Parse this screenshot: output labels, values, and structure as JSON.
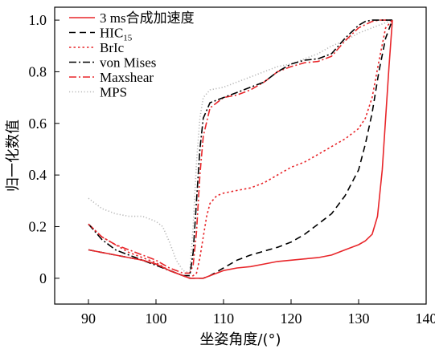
{
  "chart_data": {
    "type": "line",
    "xlabel": "坐姿角度/(°)",
    "ylabel": "归一化数值",
    "xlim": [
      85,
      140
    ],
    "ylim": [
      -0.1,
      1.05
    ],
    "xticks": [
      90,
      100,
      110,
      120,
      130,
      140
    ],
    "yticks": [
      0,
      0.2,
      0.4,
      0.6,
      0.8,
      1.0
    ],
    "xtick_labels": [
      "90",
      "100",
      "110",
      "120",
      "130",
      "140"
    ],
    "ytick_labels": [
      "0",
      "0.2",
      "0.4",
      "0.6",
      "0.8",
      "1.0"
    ],
    "grid": false,
    "legend_position": "top-left",
    "series": [
      {
        "name": "3 ms合成加速度",
        "legend_main": "3 ms合成加速度",
        "legend_sub": "",
        "color": "#e8262a",
        "dash": "solid",
        "x": [
          90,
          92,
          94,
          96,
          98,
          100,
          102,
          104,
          105,
          106,
          107,
          108,
          110,
          112,
          114,
          116,
          118,
          120,
          122,
          124,
          126,
          128,
          130,
          131,
          132,
          132.8,
          133.5,
          134,
          134.5,
          135
        ],
        "y": [
          0.11,
          0.1,
          0.09,
          0.08,
          0.07,
          0.055,
          0.03,
          0.01,
          0.0,
          0.0,
          0.0,
          0.01,
          0.03,
          0.04,
          0.045,
          0.055,
          0.065,
          0.07,
          0.075,
          0.08,
          0.09,
          0.11,
          0.13,
          0.145,
          0.17,
          0.24,
          0.42,
          0.62,
          0.82,
          1.0
        ]
      },
      {
        "name": "HIC15",
        "legend_main": "HIC",
        "legend_sub": "15",
        "color": "#000000",
        "dash": "8,5",
        "x": [
          90,
          92,
          94,
          96,
          98,
          100,
          102,
          104,
          105,
          106,
          107,
          108,
          110,
          112,
          114,
          116,
          118,
          120,
          122,
          124,
          126,
          128,
          130,
          131,
          132,
          133,
          134,
          135
        ],
        "y": [
          0.11,
          0.1,
          0.09,
          0.08,
          0.07,
          0.055,
          0.03,
          0.01,
          0.0,
          0.0,
          0.0,
          0.01,
          0.04,
          0.07,
          0.09,
          0.105,
          0.12,
          0.14,
          0.17,
          0.21,
          0.25,
          0.32,
          0.42,
          0.52,
          0.64,
          0.8,
          0.93,
          1.0
        ]
      },
      {
        "name": "BrIc",
        "legend_main": "BrIc",
        "legend_sub": "",
        "color": "#e8262a",
        "dash": "2.5,3",
        "x": [
          90,
          92,
          94,
          96,
          98,
          100,
          102,
          104,
          105,
          106,
          106.5,
          107,
          107.5,
          108,
          109,
          110,
          112,
          114,
          116,
          118,
          120,
          122,
          124,
          126,
          128,
          130,
          131,
          132,
          133,
          134,
          135
        ],
        "y": [
          0.21,
          0.16,
          0.13,
          0.1,
          0.08,
          0.06,
          0.03,
          0.01,
          0.0,
          0.02,
          0.08,
          0.16,
          0.24,
          0.29,
          0.32,
          0.33,
          0.34,
          0.35,
          0.37,
          0.4,
          0.43,
          0.45,
          0.48,
          0.51,
          0.54,
          0.58,
          0.62,
          0.7,
          0.84,
          0.97,
          1.0
        ]
      },
      {
        "name": "von Mises",
        "legend_main": "von Mises",
        "legend_sub": "",
        "color": "#000000",
        "dash": "9,3,2,3",
        "x": [
          90,
          92,
          94,
          96,
          98,
          100,
          102,
          104,
          105,
          105.5,
          106,
          106.5,
          107,
          108,
          110,
          112,
          114,
          116,
          118,
          120,
          122,
          124,
          126,
          128,
          130,
          131,
          132,
          133,
          134,
          135
        ],
        "y": [
          0.21,
          0.15,
          0.11,
          0.09,
          0.07,
          0.05,
          0.03,
          0.01,
          0.01,
          0.1,
          0.3,
          0.5,
          0.62,
          0.68,
          0.7,
          0.72,
          0.74,
          0.76,
          0.8,
          0.83,
          0.845,
          0.85,
          0.87,
          0.93,
          0.98,
          0.995,
          1.0,
          1.0,
          1.0,
          1.0
        ]
      },
      {
        "name": "Maxshear",
        "legend_main": "Maxshear",
        "legend_sub": "",
        "color": "#e8262a",
        "dash": "9,3,2,3",
        "x": [
          90,
          92,
          94,
          96,
          98,
          100,
          102,
          104,
          105,
          105.5,
          106,
          106.5,
          107,
          108,
          110,
          112,
          114,
          116,
          118,
          120,
          122,
          124,
          126,
          128,
          130,
          132,
          133,
          134,
          135
        ],
        "y": [
          0.21,
          0.16,
          0.13,
          0.11,
          0.09,
          0.07,
          0.04,
          0.02,
          0.02,
          0.05,
          0.18,
          0.4,
          0.55,
          0.66,
          0.7,
          0.71,
          0.73,
          0.76,
          0.8,
          0.82,
          0.835,
          0.84,
          0.86,
          0.92,
          0.97,
          0.995,
          1.0,
          1.0,
          1.0
        ]
      },
      {
        "name": "MPS",
        "legend_main": "MPS",
        "legend_sub": "",
        "color": "#b8b8b8",
        "dash": "1.2,2.5",
        "x": [
          90,
          92,
          94,
          96,
          98,
          100,
          101,
          102,
          103,
          104,
          105,
          105.5,
          106,
          106.5,
          107,
          108,
          110,
          112,
          114,
          116,
          118,
          120,
          122,
          124,
          126,
          128,
          130,
          132,
          134,
          135
        ],
        "y": [
          0.31,
          0.27,
          0.25,
          0.24,
          0.24,
          0.22,
          0.2,
          0.14,
          0.07,
          0.03,
          0.02,
          0.2,
          0.45,
          0.62,
          0.7,
          0.73,
          0.74,
          0.76,
          0.78,
          0.8,
          0.82,
          0.83,
          0.85,
          0.87,
          0.9,
          0.92,
          0.95,
          0.97,
          0.99,
          1.0
        ]
      }
    ]
  }
}
